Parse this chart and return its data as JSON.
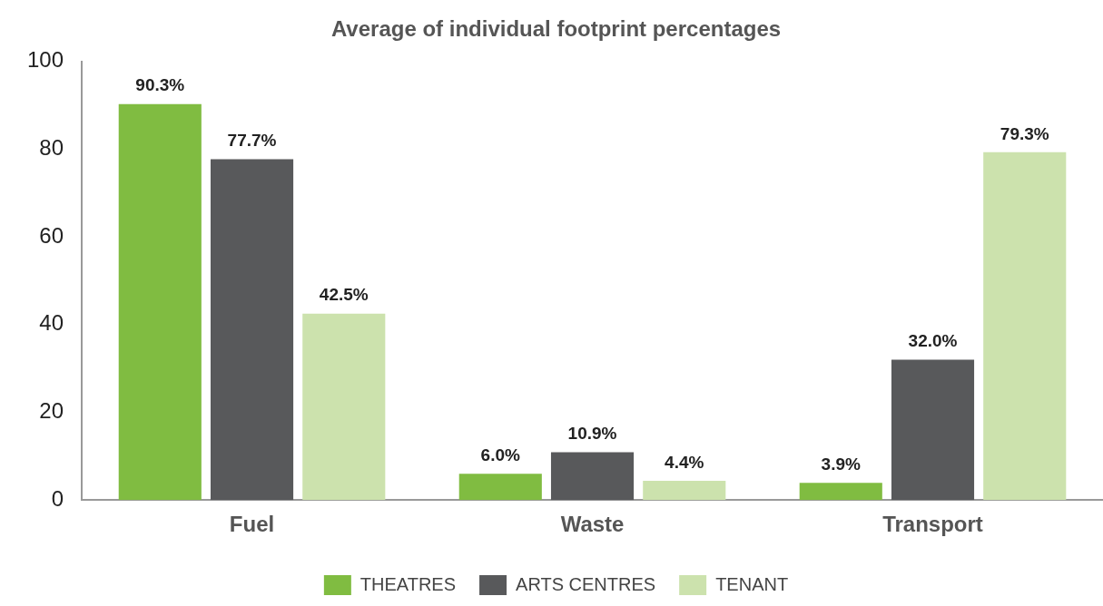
{
  "chart_data": {
    "type": "bar",
    "title": "Average of individual footprint percentages",
    "categories": [
      "Fuel",
      "Waste",
      "Transport"
    ],
    "series": [
      {
        "name": "THEATRES",
        "color": "#80bc41",
        "values": [
          90.3,
          6.0,
          3.9
        ],
        "value_labels": [
          "90.3%",
          "6.0%",
          "3.9%"
        ]
      },
      {
        "name": "ARTS CENTRES",
        "color": "#58595b",
        "values": [
          77.7,
          10.9,
          32.0
        ],
        "value_labels": [
          "77.7%",
          "10.9%",
          "32.0%"
        ]
      },
      {
        "name": "TENANT",
        "color": "#cce2ad",
        "values": [
          42.5,
          4.4,
          79.3
        ],
        "value_labels": [
          "42.5%",
          "4.4%",
          "79.3%"
        ]
      }
    ],
    "ylim": [
      0,
      100
    ],
    "yticks": [
      0,
      20,
      40,
      60,
      80,
      100
    ],
    "grid": false,
    "legend": "bottom"
  }
}
